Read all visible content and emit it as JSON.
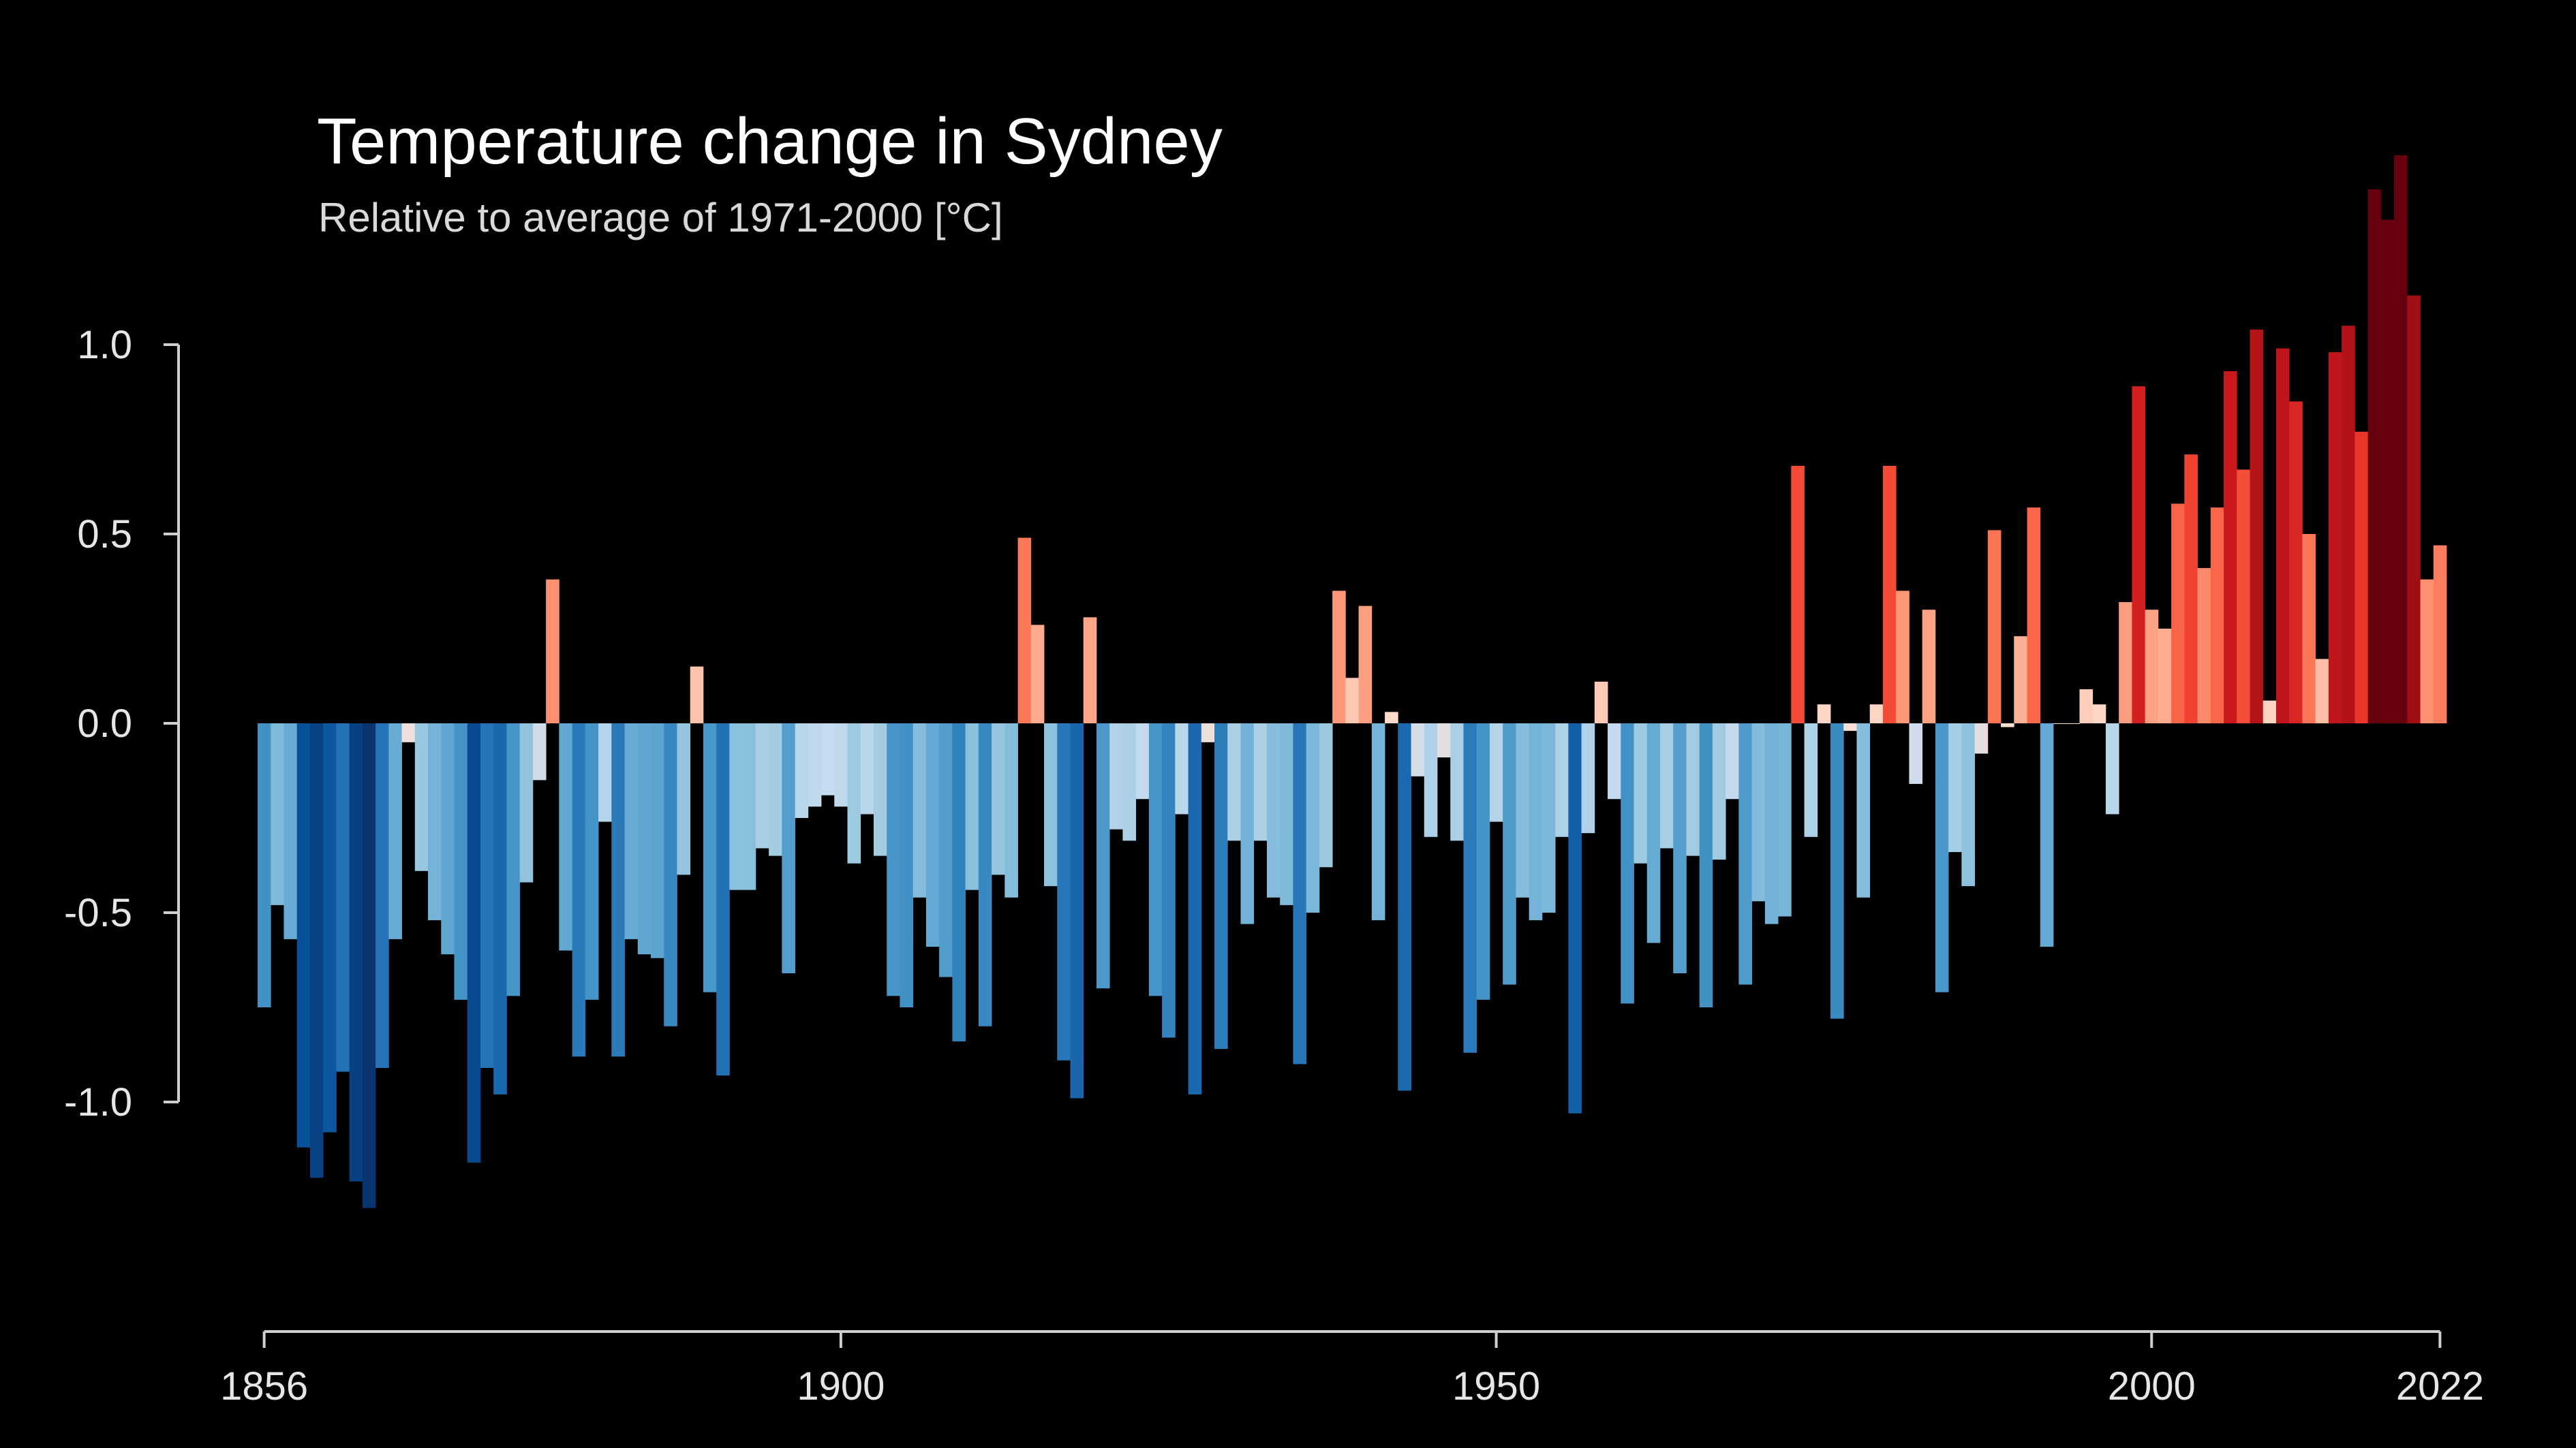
{
  "chart_data": {
    "type": "bar",
    "title": "Temperature change in Sydney",
    "subtitle": "Relative to average of 1971-2000  [°C]",
    "xlabel": "",
    "ylabel": "",
    "x_start": 1856,
    "x_end": 2022,
    "xlim": [
      1856,
      2022
    ],
    "ylim": [
      -1.6,
      1.5
    ],
    "x_ticks": [
      1856,
      1900,
      1950,
      2000,
      2022
    ],
    "x_tick_labels": [
      "1856",
      "1900",
      "1950",
      "2000",
      "2022"
    ],
    "y_ticks": [
      1.0,
      0.5,
      0.0,
      -0.5,
      -1.0
    ],
    "y_tick_labels": [
      "1.0",
      "0.5",
      "0.0",
      "-0.5",
      "-1.0"
    ],
    "grid": false,
    "legend": "none",
    "color_scale": {
      "min": -1.3,
      "max": 1.3,
      "stops": [
        "#08306b",
        "#08519c",
        "#2171b5",
        "#4292c6",
        "#6baed6",
        "#9ecae1",
        "#c6dbef",
        "#fee0d2",
        "#fcbba1",
        "#fc9272",
        "#fb6a4a",
        "#ef3b2c",
        "#cb181d",
        "#a50f15",
        "#67000d"
      ]
    },
    "series": [
      {
        "years": [
          1856,
          1857,
          1858,
          1859,
          1860,
          1861,
          1862,
          1863,
          1864,
          1865,
          1866,
          1867,
          1868,
          1869,
          1870,
          1871,
          1872,
          1873,
          1874,
          1875,
          1876,
          1877,
          1878,
          1879,
          1880,
          1881,
          1882,
          1883,
          1884,
          1885,
          1886,
          1887,
          1888,
          1889,
          1890,
          1891,
          1892,
          1893,
          1894,
          1895,
          1896,
          1897,
          1898,
          1899,
          1900,
          1901,
          1902,
          1903,
          1904,
          1905,
          1906,
          1907,
          1908,
          1909,
          1910,
          1911,
          1912,
          1913,
          1914,
          1915,
          1916,
          1917,
          1918,
          1919,
          1920,
          1921,
          1922,
          1923,
          1924,
          1925,
          1926,
          1927,
          1928,
          1929,
          1930,
          1931,
          1932,
          1933,
          1934,
          1935,
          1936,
          1937,
          1938,
          1939,
          1940,
          1941,
          1942,
          1943,
          1944,
          1945,
          1946,
          1947,
          1948,
          1949,
          1950,
          1951,
          1952,
          1953,
          1954,
          1955,
          1956,
          1957,
          1958,
          1959,
          1960,
          1961,
          1962,
          1963,
          1964,
          1965,
          1966,
          1967,
          1968,
          1969,
          1970,
          1971,
          1972,
          1973,
          1974,
          1975,
          1976,
          1977,
          1978,
          1979,
          1980,
          1981,
          1982,
          1983,
          1984,
          1985,
          1986,
          1987,
          1988,
          1989,
          1990,
          1991,
          1992,
          1993,
          1994,
          1995,
          1996,
          1997,
          1998,
          1999,
          2000,
          2001,
          2002,
          2003,
          2004,
          2005,
          2006,
          2007,
          2008,
          2009,
          2010,
          2011,
          2012,
          2013,
          2014,
          2015,
          2016,
          2017,
          2018,
          2019,
          2020,
          2021,
          2022
        ],
        "values": [
          -0.75,
          -0.48,
          -0.57,
          -1.12,
          -1.2,
          -1.08,
          -0.92,
          -1.21,
          -1.28,
          -0.91,
          -0.57,
          -0.05,
          -0.39,
          -0.52,
          -0.61,
          -0.73,
          -1.16,
          -0.91,
          -0.98,
          -0.72,
          -0.42,
          -0.15,
          0.38,
          -0.6,
          -0.88,
          -0.73,
          -0.26,
          -0.88,
          -0.57,
          -0.61,
          -0.62,
          -0.8,
          -0.4,
          0.15,
          -0.71,
          -0.93,
          -0.44,
          -0.44,
          -0.33,
          -0.35,
          -0.66,
          -0.25,
          -0.22,
          -0.19,
          -0.22,
          -0.37,
          -0.24,
          -0.35,
          -0.72,
          -0.75,
          -0.46,
          -0.59,
          -0.67,
          -0.84,
          -0.44,
          -0.8,
          -0.4,
          -0.46,
          0.49,
          0.26,
          -0.43,
          -0.89,
          -0.99,
          0.28,
          -0.7,
          -0.28,
          -0.31,
          -0.2,
          -0.72,
          -0.83,
          -0.24,
          -0.98,
          -0.05,
          -0.86,
          -0.31,
          -0.53,
          -0.31,
          -0.46,
          -0.48,
          -0.9,
          -0.5,
          -0.38,
          0.35,
          0.12,
          0.31,
          -0.52,
          0.03,
          -0.97,
          -0.14,
          -0.3,
          -0.09,
          -0.31,
          -0.87,
          -0.73,
          -0.26,
          -0.69,
          -0.46,
          -0.52,
          -0.5,
          -0.3,
          -1.03,
          -0.29,
          0.11,
          -0.2,
          -0.74,
          -0.37,
          -0.58,
          -0.33,
          -0.66,
          -0.35,
          -0.75,
          -0.36,
          -0.2,
          -0.69,
          -0.47,
          -0.53,
          -0.51,
          0.68,
          -0.3,
          0.05,
          -0.78,
          -0.02,
          -0.46,
          0.05,
          0.68,
          0.35,
          -0.16,
          0.3,
          -0.71,
          -0.34,
          -0.43,
          -0.08,
          0.51,
          -0.01,
          0.23,
          0.57,
          -0.59,
          0.0,
          0.0,
          0.09,
          0.05,
          -0.24,
          0.32,
          0.89,
          0.3,
          0.25,
          0.58,
          0.71,
          0.41,
          0.57,
          0.93,
          0.67,
          1.04,
          0.06,
          0.99,
          0.85,
          0.5,
          0.17,
          0.98,
          1.05,
          0.77,
          1.41,
          1.33,
          1.5,
          1.13,
          0.38,
          0.47
        ]
      }
    ]
  }
}
